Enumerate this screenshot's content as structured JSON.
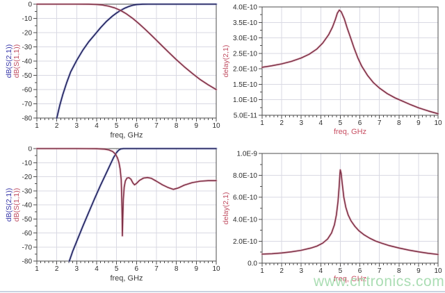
{
  "watermark": {
    "text": "www.cntronics.com",
    "color": "#a7dcb0"
  },
  "palette": {
    "grid": "#d9d9e3",
    "border": "#4d4d4d",
    "tick": "#4d4d4d",
    "tick_text": "#2b2b2b",
    "s21_blue": "#20205c",
    "s11_red": "#7f3147",
    "label_blue": "#3434a8",
    "label_red": "#bf4b5f",
    "freq_label_left": "#3a3a3a",
    "freq_label_right": "#c84f63"
  },
  "chart_data": [
    {
      "name": "upper-s-parameters",
      "type": "line",
      "xlabel": "freq, GHz",
      "xlabel_color": "#3a3a3a",
      "xlim": [
        1,
        10
      ],
      "xtick_values": [
        1,
        2,
        3,
        4,
        5,
        6,
        7,
        8,
        9,
        10
      ],
      "xtick_labels": [
        "1",
        "2",
        "3",
        "4",
        "5",
        "6",
        "7",
        "8",
        "9",
        "10"
      ],
      "x_minor_step": 0.2,
      "ylim": [
        -80,
        0
      ],
      "ytick_values": [
        0,
        -10,
        -20,
        -30,
        -40,
        -50,
        -60,
        -70,
        -80
      ],
      "ytick_labels": [
        "0",
        "-10",
        "-20",
        "-30",
        "-40",
        "-50",
        "-60",
        "-70",
        "-80"
      ],
      "y_minor_step": 5,
      "grid": true,
      "y_axis_names": [
        {
          "text": "dB(S(2,1))",
          "color": "#3434a8"
        },
        {
          "text": "dB(S(1,1))",
          "color": "#bf4b5f"
        }
      ],
      "series": [
        {
          "name": "dB(S(2,1))",
          "color": "#20205c",
          "halo": "#9098cc",
          "points": [
            [
              2,
              -80
            ],
            [
              2.15,
              -71
            ],
            [
              2.3,
              -63.5
            ],
            [
              2.5,
              -55
            ],
            [
              2.7,
              -47.5
            ],
            [
              3,
              -39.5
            ],
            [
              3.3,
              -32.5
            ],
            [
              3.6,
              -26.5
            ],
            [
              3.9,
              -21.5
            ],
            [
              4.2,
              -16.5
            ],
            [
              4.5,
              -12
            ],
            [
              4.8,
              -8.3
            ],
            [
              5,
              -6.2
            ],
            [
              5.2,
              -4.4
            ],
            [
              5.4,
              -2.9
            ],
            [
              5.6,
              -1.7
            ],
            [
              5.8,
              -0.8
            ],
            [
              6,
              -0.3
            ],
            [
              6.3,
              -0.05
            ],
            [
              6.6,
              0
            ],
            [
              7,
              0
            ],
            [
              8,
              0
            ],
            [
              9,
              0
            ],
            [
              10,
              0
            ]
          ]
        },
        {
          "name": "dB(S(1,1))",
          "color": "#7f3147",
          "halo": "#e0a8b6",
          "points": [
            [
              1,
              0
            ],
            [
              2,
              0
            ],
            [
              3,
              0
            ],
            [
              3.6,
              -0.05
            ],
            [
              4,
              -0.2
            ],
            [
              4.3,
              -0.6
            ],
            [
              4.6,
              -1.4
            ],
            [
              4.9,
              -2.6
            ],
            [
              5.2,
              -4.4
            ],
            [
              5.5,
              -6.9
            ],
            [
              5.8,
              -9.9
            ],
            [
              6.1,
              -13.4
            ],
            [
              6.4,
              -17.2
            ],
            [
              6.7,
              -21.2
            ],
            [
              7,
              -25.3
            ],
            [
              7.3,
              -29.5
            ],
            [
              7.6,
              -33.6
            ],
            [
              8,
              -39
            ],
            [
              8.4,
              -44
            ],
            [
              8.8,
              -48.7
            ],
            [
              9.2,
              -53
            ],
            [
              9.6,
              -56.7
            ],
            [
              10,
              -60
            ]
          ]
        }
      ]
    },
    {
      "name": "upper-group-delay",
      "type": "line",
      "xlabel": "freq, GHz",
      "xlabel_color": "#c84f63",
      "xlim": [
        1,
        10
      ],
      "xtick_values": [
        1,
        2,
        3,
        4,
        5,
        6,
        7,
        8,
        9,
        10
      ],
      "xtick_labels": [
        "1",
        "2",
        "3",
        "4",
        "5",
        "6",
        "7",
        "8",
        "9",
        "10"
      ],
      "x_minor_step": 0.2,
      "ylim": [
        5e-11,
        4e-10
      ],
      "ytick_values": [
        4e-10,
        3.5e-10,
        3e-10,
        2.5e-10,
        2e-10,
        1.5e-10,
        1e-10,
        5e-11
      ],
      "ytick_labels": [
        "4.0E-10",
        "3.5E-10",
        "3.0E-10",
        "2.5E-10",
        "2.0E-10",
        "1.5E-10",
        "1.0E-10",
        "5.0E-11"
      ],
      "y_minor_step": 2.5e-11,
      "grid": true,
      "y_axis_names": [
        {
          "text": "delay(2,1)",
          "color": "#bf4b5f"
        }
      ],
      "series": [
        {
          "name": "delay(2,1)",
          "color": "#7f3147",
          "halo": "#e0a8b6",
          "points": [
            [
              1,
              2.05e-10
            ],
            [
              1.5,
              2.1e-10
            ],
            [
              2,
              2.16e-10
            ],
            [
              2.5,
              2.24e-10
            ],
            [
              3,
              2.35e-10
            ],
            [
              3.4,
              2.47e-10
            ],
            [
              3.8,
              2.64e-10
            ],
            [
              4.1,
              2.83e-10
            ],
            [
              4.4,
              3.1e-10
            ],
            [
              4.6,
              3.35e-10
            ],
            [
              4.75,
              3.6e-10
            ],
            [
              4.85,
              3.8e-10
            ],
            [
              4.95,
              3.9e-10
            ],
            [
              5.05,
              3.84e-10
            ],
            [
              5.2,
              3.62e-10
            ],
            [
              5.35,
              3.32e-10
            ],
            [
              5.5,
              3.05e-10
            ],
            [
              5.7,
              2.68e-10
            ],
            [
              5.9,
              2.35e-10
            ],
            [
              6.1,
              2.08e-10
            ],
            [
              6.4,
              1.78e-10
            ],
            [
              6.7,
              1.55e-10
            ],
            [
              7,
              1.38e-10
            ],
            [
              7.4,
              1.2e-10
            ],
            [
              7.8,
              1.06e-10
            ],
            [
              8.2,
              9.5e-11
            ],
            [
              8.6,
              8.4e-11
            ],
            [
              9,
              7.4e-11
            ],
            [
              9.5,
              6.4e-11
            ],
            [
              10,
              5.5e-11
            ]
          ]
        }
      ]
    },
    {
      "name": "lower-s-parameters",
      "type": "line",
      "xlabel": "freq, GHz",
      "xlabel_color": "#3a3a3a",
      "xlim": [
        1,
        10
      ],
      "xtick_values": [
        1,
        2,
        3,
        4,
        5,
        6,
        7,
        8,
        9,
        10
      ],
      "xtick_labels": [
        "1",
        "2",
        "3",
        "4",
        "5",
        "6",
        "7",
        "8",
        "9",
        "10"
      ],
      "x_minor_step": 0.2,
      "ylim": [
        -80,
        0
      ],
      "ytick_values": [
        0,
        -10,
        -20,
        -30,
        -40,
        -50,
        -60,
        -70,
        -80
      ],
      "ytick_labels": [
        "0",
        "-10",
        "-20",
        "-30",
        "-40",
        "-50",
        "-60",
        "-70",
        "-80"
      ],
      "y_minor_step": 5,
      "grid": true,
      "y_axis_names": [
        {
          "text": "dB(S(2,1))",
          "color": "#3434a8"
        },
        {
          "text": "dB(S(1,1))",
          "color": "#bf4b5f"
        }
      ],
      "series": [
        {
          "name": "dB(S(2,1))",
          "color": "#20205c",
          "halo": "#9098cc",
          "points": [
            [
              2.63,
              -80
            ],
            [
              2.8,
              -73
            ],
            [
              3,
              -66
            ],
            [
              3.3,
              -55.5
            ],
            [
              3.6,
              -45.5
            ],
            [
              3.9,
              -35.5
            ],
            [
              4.2,
              -26
            ],
            [
              4.5,
              -17
            ],
            [
              4.7,
              -10.8
            ],
            [
              4.85,
              -6.3
            ],
            [
              5,
              -2.8
            ],
            [
              5.1,
              -1.2
            ],
            [
              5.2,
              -0.3
            ],
            [
              5.35,
              0
            ],
            [
              6,
              0
            ],
            [
              7,
              0
            ],
            [
              8,
              0
            ],
            [
              9,
              0
            ],
            [
              10,
              0
            ]
          ]
        },
        {
          "name": "dB(S(1,1))",
          "color": "#7f3147",
          "halo": "#e0a8b6",
          "points": [
            [
              1,
              0
            ],
            [
              2,
              0
            ],
            [
              3,
              0
            ],
            [
              4,
              -0.1
            ],
            [
              4.4,
              -0.4
            ],
            [
              4.6,
              -0.9
            ],
            [
              4.8,
              -2
            ],
            [
              4.95,
              -4
            ],
            [
              5.05,
              -6.8
            ],
            [
              5.12,
              -10
            ],
            [
              5.18,
              -14.5
            ],
            [
              5.23,
              -22
            ],
            [
              5.26,
              -35
            ],
            [
              5.28,
              -50
            ],
            [
              5.29,
              -62
            ],
            [
              5.31,
              -50
            ],
            [
              5.34,
              -36
            ],
            [
              5.38,
              -27.5
            ],
            [
              5.44,
              -23
            ],
            [
              5.52,
              -21
            ],
            [
              5.62,
              -20.7
            ],
            [
              5.72,
              -21.8
            ],
            [
              5.82,
              -24.5
            ],
            [
              5.9,
              -25.8
            ],
            [
              6,
              -24.8
            ],
            [
              6.15,
              -22.6
            ],
            [
              6.35,
              -21
            ],
            [
              6.55,
              -20.6
            ],
            [
              6.75,
              -21.2
            ],
            [
              7,
              -23.2
            ],
            [
              7.3,
              -25.8
            ],
            [
              7.6,
              -27.8
            ],
            [
              7.85,
              -29
            ],
            [
              8.1,
              -28
            ],
            [
              8.4,
              -26
            ],
            [
              8.8,
              -24.2
            ],
            [
              9.2,
              -23.2
            ],
            [
              9.6,
              -22.8
            ],
            [
              10,
              -22.8
            ]
          ]
        }
      ]
    },
    {
      "name": "lower-group-delay",
      "type": "line",
      "xlabel": "freq, GHz",
      "xlabel_color": "#c84f63",
      "xlim": [
        1,
        10
      ],
      "xtick_values": [
        1,
        2,
        3,
        4,
        5,
        6,
        7,
        8,
        9,
        10
      ],
      "xtick_labels": [
        "1",
        "2",
        "3",
        "4",
        "5",
        "6",
        "7",
        "8",
        "9",
        "10"
      ],
      "x_minor_step": 0.2,
      "ylim": [
        0,
        1e-09
      ],
      "ytick_values": [
        1e-09,
        8e-10,
        6e-10,
        4e-10,
        2e-10,
        0
      ],
      "ytick_labels": [
        "1.0E-9",
        "8.0E-10",
        "6.0E-10",
        "4.0E-10",
        "2.0E-10",
        "0.0"
      ],
      "y_minor_step": 1e-10,
      "grid": true,
      "y_axis_names": [
        {
          "text": "delay(2,1)",
          "color": "#bf4b5f"
        }
      ],
      "series": [
        {
          "name": "delay(2,1)",
          "color": "#7f3147",
          "halo": "#e0a8b6",
          "points": [
            [
              1,
              8.2e-11
            ],
            [
              1.5,
              8.6e-11
            ],
            [
              2,
              9.3e-11
            ],
            [
              2.5,
              1.03e-10
            ],
            [
              3,
              1.17e-10
            ],
            [
              3.5,
              1.38e-10
            ],
            [
              3.8,
              1.55e-10
            ],
            [
              4.1,
              1.82e-10
            ],
            [
              4.35,
              2.2e-10
            ],
            [
              4.55,
              2.75e-10
            ],
            [
              4.7,
              3.5e-10
            ],
            [
              4.8,
              4.4e-10
            ],
            [
              4.88,
              5.6e-10
            ],
            [
              4.94,
              7e-10
            ],
            [
              4.98,
              8.2e-10
            ],
            [
              5,
              8.5e-10
            ],
            [
              5.04,
              8.2e-10
            ],
            [
              5.1,
              7.2e-10
            ],
            [
              5.18,
              6e-10
            ],
            [
              5.28,
              5.1e-10
            ],
            [
              5.4,
              4.4e-10
            ],
            [
              5.55,
              3.85e-10
            ],
            [
              5.75,
              3.35e-10
            ],
            [
              5.95,
              2.95e-10
            ],
            [
              6.2,
              2.6e-10
            ],
            [
              6.5,
              2.28e-10
            ],
            [
              6.8,
              2.02e-10
            ],
            [
              7.1,
              1.83e-10
            ],
            [
              7.5,
              1.6e-10
            ],
            [
              8,
              1.38e-10
            ],
            [
              8.5,
              1.19e-10
            ],
            [
              9,
              1.03e-10
            ],
            [
              9.5,
              9e-11
            ],
            [
              10,
              7.9e-11
            ]
          ]
        }
      ]
    }
  ]
}
